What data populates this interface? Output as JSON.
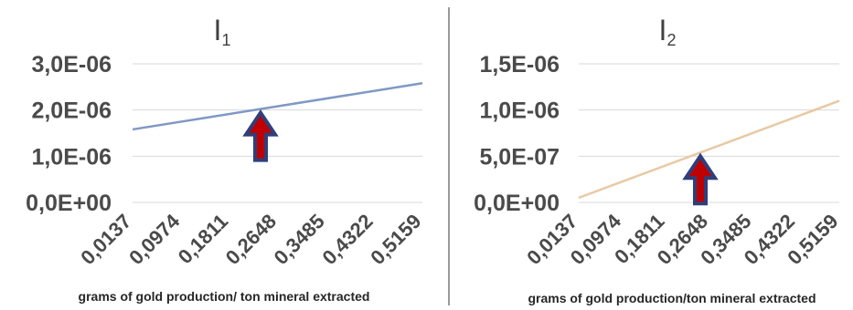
{
  "chart_data": [
    {
      "type": "line",
      "title": "I",
      "title_subscript": "1",
      "xlabel": "grams of gold production/ ton mineral extracted",
      "ylabel": "",
      "categories": [
        "0,0137",
        "0,0974",
        "0,1811",
        "0,2648",
        "0,3485",
        "0,4322",
        "0,5159"
      ],
      "x": [
        0.0137,
        0.5661
      ],
      "values": [
        1.58e-06,
        2.68e-06
      ],
      "yticks": [
        "0,0E+00",
        "1,0E-06",
        "2,0E-06",
        "3,0E-06"
      ],
      "ylim": [
        0,
        3e-06
      ],
      "grid": true,
      "line_color": "#7f98c4",
      "arrow_at": 0.2648,
      "arrow_colors": {
        "fill": "#c00000",
        "outline": "#2f3f7a"
      }
    },
    {
      "type": "line",
      "title": "I",
      "title_subscript": "2",
      "xlabel": "grams of gold production/ton mineral extracted",
      "ylabel": "",
      "categories": [
        "0,0137",
        "0,0974",
        "0,1811",
        "0,2648",
        "0,3485",
        "0,4322",
        "0,5159"
      ],
      "x": [
        0.0137,
        0.5159
      ],
      "values": [
        5e-08,
        1.1e-06
      ],
      "yticks": [
        "0,0E+00",
        "5,0E-07",
        "1,0E-06",
        "1,5E-06"
      ],
      "ylim": [
        0,
        1.5e-06
      ],
      "grid": true,
      "line_color": "#e8c9a4",
      "arrow_at": 0.2648,
      "arrow_colors": {
        "fill": "#c00000",
        "outline": "#2f3f7a"
      }
    }
  ],
  "divider_color": "#9a9a9a"
}
